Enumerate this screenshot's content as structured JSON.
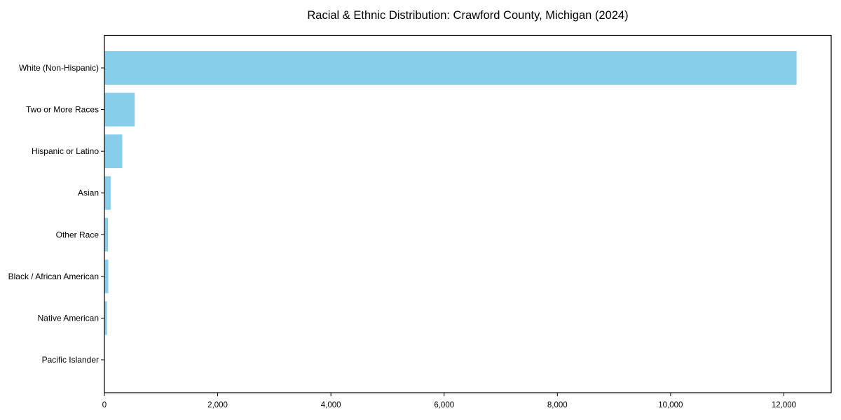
{
  "figure": {
    "background": "#ffffff",
    "text_color": "#000000",
    "spine_color": "#000000"
  },
  "chart_data": {
    "type": "bar",
    "orientation": "horizontal",
    "title": "Racial & Ethnic Distribution: Crawford County, Michigan (2024)",
    "xlabel": "",
    "ylabel": "",
    "categories": [
      "White (Non-Hispanic)",
      "Two or More Races",
      "Hispanic or Latino",
      "Asian",
      "Other Race",
      "Black / African American",
      "Native American",
      "Pacific Islander"
    ],
    "values": [
      12225,
      535,
      315,
      110,
      62,
      68,
      45,
      5
    ],
    "bar_color": "#87CEEB",
    "xlim": [
      0,
      12836
    ],
    "xticks": [
      0,
      2000,
      4000,
      6000,
      8000,
      10000,
      12000
    ],
    "xtick_labels": [
      "0",
      "2,000",
      "4,000",
      "6,000",
      "8,000",
      "10,000",
      "12,000"
    ],
    "grid": false,
    "legend": "none"
  }
}
